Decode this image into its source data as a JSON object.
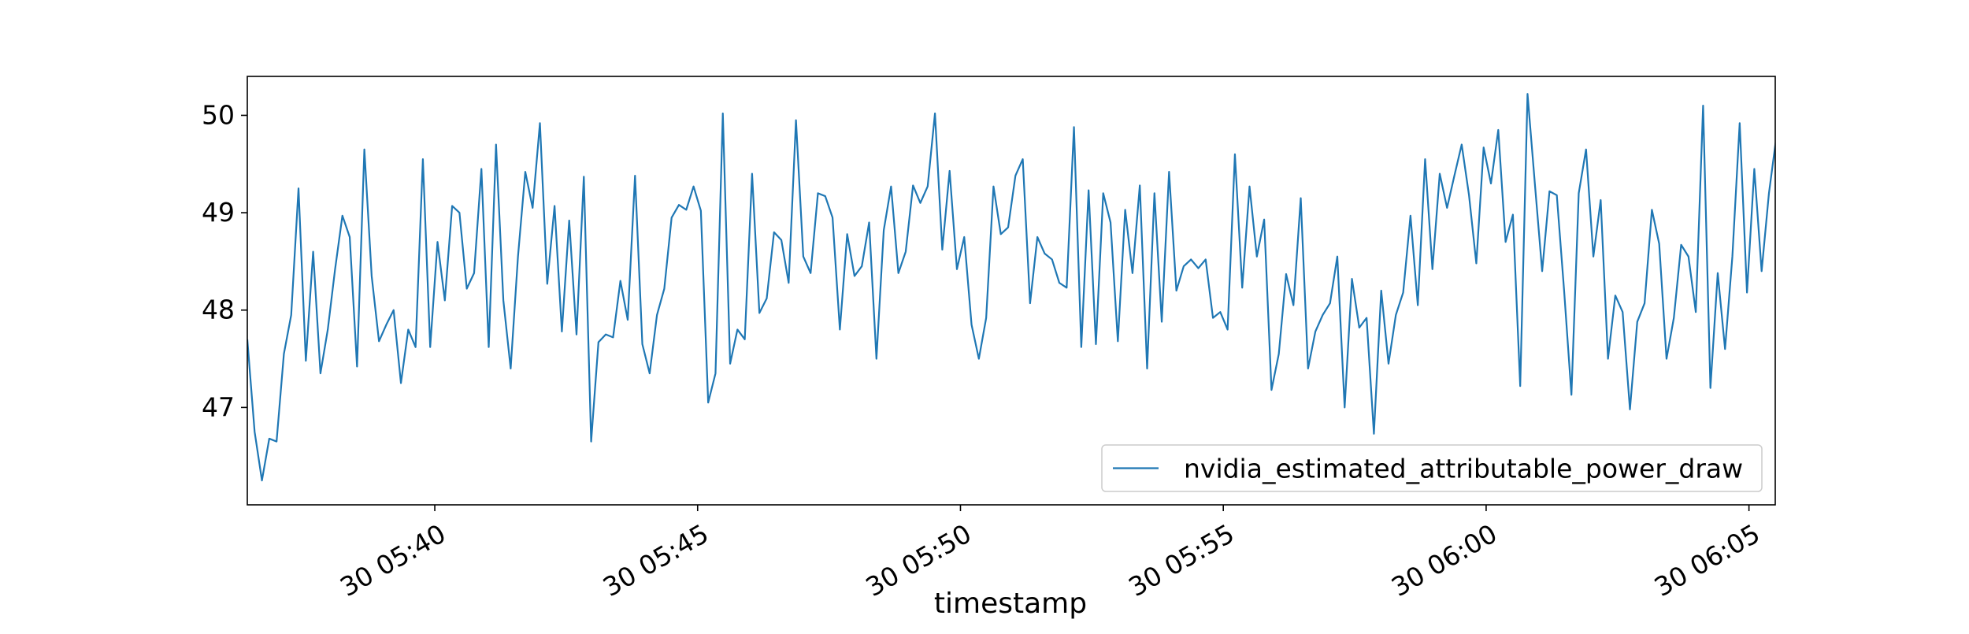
{
  "chart_data": {
    "type": "line",
    "xlabel": "timestamp",
    "ylabel": "",
    "x_unit": "time (HH:MM)",
    "xlim": [
      "05:36:26",
      "06:05:30"
    ],
    "ylim": [
      46.0,
      50.4
    ],
    "grid": false,
    "legend_position": "lower-right",
    "x_ticks": [
      {
        "t": "05:40",
        "label": "30 05:40"
      },
      {
        "t": "05:45",
        "label": "30 05:45"
      },
      {
        "t": "05:50",
        "label": "30 05:50"
      },
      {
        "t": "05:55",
        "label": "30 05:55"
      },
      {
        "t": "06:00",
        "label": "30 06:00"
      },
      {
        "t": "06:05",
        "label": "30 06:05"
      }
    ],
    "y_ticks": [
      {
        "value": 47,
        "label": "47"
      },
      {
        "value": 48,
        "label": "48"
      },
      {
        "value": 49,
        "label": "49"
      },
      {
        "value": 50,
        "label": "50"
      }
    ],
    "series": [
      {
        "name": "nvidia_estimated_attributable_power_draw",
        "color": "#1f77b4",
        "x_start": "05:36:26",
        "x_step_seconds": 8.35,
        "values": [
          47.7,
          46.75,
          46.25,
          46.68,
          46.65,
          47.55,
          47.95,
          49.25,
          47.48,
          48.6,
          47.35,
          47.8,
          48.42,
          48.97,
          48.75,
          47.42,
          49.65,
          48.35,
          47.68,
          47.85,
          48.0,
          47.25,
          47.8,
          47.62,
          49.55,
          47.62,
          48.7,
          48.1,
          49.07,
          49.0,
          48.22,
          48.38,
          49.45,
          47.62,
          49.7,
          48.1,
          47.4,
          48.55,
          49.42,
          49.05,
          49.92,
          48.27,
          49.07,
          47.78,
          48.92,
          47.75,
          49.37,
          46.65,
          47.67,
          47.75,
          47.72,
          48.3,
          47.9,
          49.38,
          47.65,
          47.35,
          47.95,
          48.22,
          48.95,
          49.08,
          49.03,
          49.27,
          49.02,
          47.05,
          47.35,
          50.02,
          47.45,
          47.8,
          47.7,
          49.4,
          47.97,
          48.12,
          48.8,
          48.72,
          48.28,
          49.95,
          48.55,
          48.38,
          49.2,
          49.17,
          48.95,
          47.8,
          48.78,
          48.35,
          48.45,
          48.9,
          47.5,
          48.82,
          49.27,
          48.38,
          48.6,
          49.28,
          49.1,
          49.27,
          50.02,
          48.62,
          49.43,
          48.42,
          48.75,
          47.85,
          47.5,
          47.92,
          49.27,
          48.78,
          48.85,
          49.38,
          49.55,
          48.07,
          48.75,
          48.58,
          48.52,
          48.28,
          48.23,
          49.88,
          47.62,
          49.23,
          47.65,
          49.2,
          48.9,
          47.68,
          49.03,
          48.38,
          49.28,
          47.4,
          49.2,
          47.88,
          49.42,
          48.2,
          48.45,
          48.52,
          48.43,
          48.52,
          47.92,
          47.98,
          47.8,
          49.6,
          48.23,
          49.27,
          48.55,
          48.93,
          47.18,
          47.55,
          48.37,
          48.05,
          49.15,
          47.4,
          47.78,
          47.95,
          48.07,
          48.55,
          47.0,
          48.32,
          47.82,
          47.92,
          46.73,
          48.2,
          47.45,
          47.95,
          48.18,
          48.97,
          48.05,
          49.55,
          48.42,
          49.4,
          49.05,
          49.38,
          49.7,
          49.18,
          48.48,
          49.67,
          49.3,
          49.85,
          48.7,
          48.98,
          47.22,
          50.22,
          49.3,
          48.4,
          49.22,
          49.18,
          48.2,
          47.13,
          49.2,
          49.65,
          48.55,
          49.13,
          47.5,
          48.15,
          47.98,
          46.98,
          47.88,
          48.07,
          49.03,
          48.68,
          47.5,
          47.92,
          48.67,
          48.55,
          47.98,
          50.1,
          47.2,
          48.38,
          47.6,
          48.55,
          49.92,
          48.18,
          49.45,
          48.4,
          49.2,
          49.77,
          48.0,
          47.85
        ]
      }
    ]
  }
}
